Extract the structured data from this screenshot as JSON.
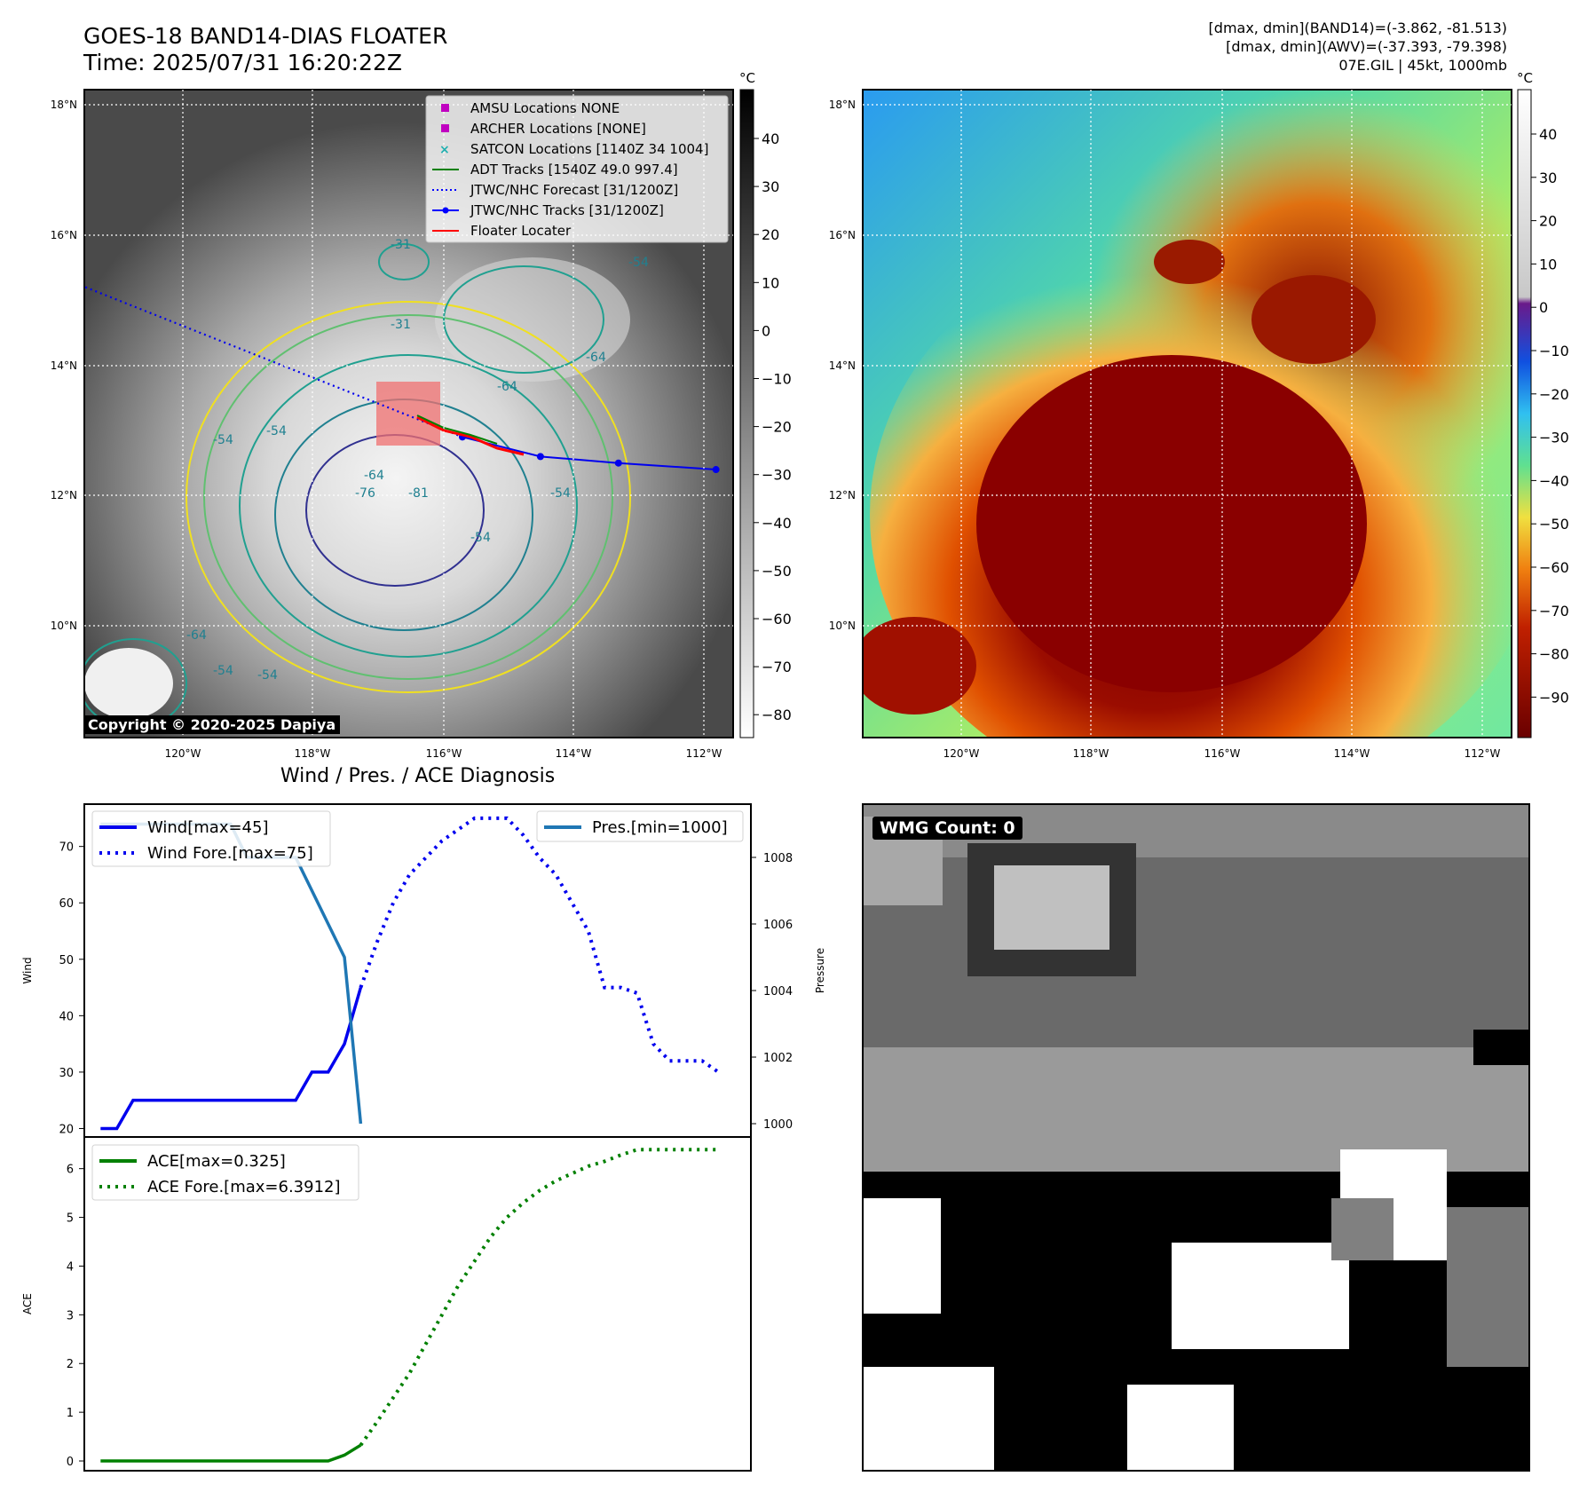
{
  "header": {
    "title_line1": "GOES-18 BAND14-DIAS FLOATER",
    "title_line2": "Time: 2025/07/31 16:20:22Z",
    "info_line1": "[dmax, dmin](BAND14)=(-3.862, -81.513)",
    "info_line2": "[dmax, dmin](AWV)=(-37.393, -79.398)",
    "info_line3": "07E.GIL | 45kt, 1000mb"
  },
  "maps": {
    "lat_labels": [
      "18°N",
      "16°N",
      "14°N",
      "12°N",
      "10°N"
    ],
    "lon_labels": [
      "120°W",
      "118°W",
      "116°W",
      "114°W",
      "112°W"
    ],
    "colorbar_unit": "°C",
    "gray_colorbar_ticks": [
      "40",
      "30",
      "20",
      "10",
      "0",
      "−10",
      "−20",
      "−30",
      "−40",
      "−50",
      "−60",
      "−70",
      "−80"
    ],
    "color_colorbar_ticks": [
      "40",
      "30",
      "20",
      "10",
      "0",
      "−10",
      "−20",
      "−30",
      "−40",
      "−50",
      "−60",
      "−70",
      "−80",
      "−90"
    ],
    "contour_labels": [
      "-54",
      "-64",
      "-54",
      "-54",
      "-64",
      "-76",
      "-54",
      "-54",
      "-64",
      "-54",
      "-64",
      "-81",
      "-31",
      "-31",
      "-54"
    ],
    "legend": [
      {
        "label": "AMSU Locations NONE",
        "color": "#c000c0"
      },
      {
        "label": "ARCHER Locations [NONE]",
        "color": "#c000c0"
      },
      {
        "label": "SATCON Locations [1140Z 34 1004]",
        "color": "#20b0b0"
      },
      {
        "label": "ADT Tracks [1540Z 49.0 997.4]",
        "color": "#008000"
      },
      {
        "label": "JTWC/NHC Forecast [31/1200Z]",
        "color": "#0000ff"
      },
      {
        "label": "JTWC/NHC Tracks [31/1200Z]",
        "color": "#0000ff"
      },
      {
        "label": "Floater Locater",
        "color": "#ff0000"
      }
    ],
    "copyright": "Copyright © 2020-2025 Dapiya",
    "track": [
      {
        "lon": -115.7,
        "lat": 12.9
      },
      {
        "lon": -114.5,
        "lat": 12.6
      },
      {
        "lon": -113.3,
        "lat": 12.5
      },
      {
        "lon": -111.8,
        "lat": 12.4
      }
    ],
    "forecast_start": {
      "lon": -121.5,
      "lat": 15.2
    },
    "wmg_label": "WMG Count: 0"
  },
  "chart_data": [
    {
      "type": "line",
      "title": "Wind / Pres. / ACE Diagnosis",
      "ylabel": "Wind",
      "ylabel_right": "Pressure",
      "ylim": [
        18.5,
        77.5
      ],
      "ylim_right": [
        999.6,
        1009.6
      ],
      "yticks": [
        20,
        30,
        40,
        50,
        60,
        70
      ],
      "yticks_right": [
        1000,
        1002,
        1004,
        1006,
        1008
      ],
      "series": [
        {
          "name": "Wind[max=45]",
          "color": "#0000ee",
          "style": "solid",
          "x": [
            0,
            1,
            2,
            3,
            4,
            5,
            6,
            7,
            8,
            9,
            10,
            11,
            12,
            13,
            14,
            15,
            16
          ],
          "y": [
            20,
            20,
            25,
            25,
            25,
            25,
            25,
            25,
            25,
            25,
            25,
            25,
            25,
            30,
            30,
            35,
            45
          ]
        },
        {
          "name": "Wind Fore.[max=75]",
          "color": "#0000ee",
          "style": "dotted",
          "x": [
            16,
            17,
            18,
            19,
            20,
            21,
            22,
            23,
            24,
            25,
            26,
            27,
            28,
            29,
            30,
            31,
            32,
            33,
            34,
            35,
            36,
            37,
            38
          ],
          "y": [
            45,
            53,
            60,
            65,
            68,
            71,
            73,
            75,
            75,
            75,
            72,
            68,
            65,
            60,
            55,
            45,
            45,
            44,
            35,
            32,
            32,
            32,
            30
          ]
        },
        {
          "name": "Pres.[min=1000]",
          "color": "#1f77b4",
          "style": "solid",
          "x": [
            0,
            1,
            2,
            3,
            4,
            5,
            6,
            7,
            8,
            9,
            10,
            11,
            12,
            13,
            14,
            15,
            16
          ],
          "y": [
            1009,
            1009,
            1009,
            1009,
            1009,
            1009,
            1009,
            1009,
            1009,
            1008,
            1008,
            1008,
            1008,
            1007,
            1006,
            1005,
            1000
          ]
        }
      ]
    },
    {
      "type": "line",
      "ylabel": "ACE",
      "ylim": [
        -0.2,
        6.65
      ],
      "yticks": [
        0,
        1,
        2,
        3,
        4,
        5,
        6
      ],
      "series": [
        {
          "name": "ACE[max=0.325]",
          "color": "#008000",
          "style": "solid",
          "x": [
            0,
            2,
            4,
            6,
            8,
            10,
            12,
            13,
            14,
            15,
            16
          ],
          "y": [
            0,
            0,
            0,
            0,
            0,
            0,
            0,
            0,
            0,
            0.12,
            0.325
          ]
        },
        {
          "name": "ACE Fore.[max=6.3912]",
          "color": "#008000",
          "style": "dotted",
          "x": [
            16,
            17,
            18,
            19,
            20,
            21,
            22,
            23,
            24,
            25,
            26,
            27,
            28,
            29,
            30,
            31,
            32,
            33,
            34,
            35,
            36,
            37,
            38
          ],
          "y": [
            0.325,
            0.8,
            1.3,
            1.8,
            2.4,
            3.0,
            3.6,
            4.1,
            4.6,
            5.0,
            5.3,
            5.55,
            5.75,
            5.9,
            6.05,
            6.15,
            6.28,
            6.39,
            6.39,
            6.39,
            6.39,
            6.39,
            6.39
          ]
        }
      ]
    }
  ]
}
